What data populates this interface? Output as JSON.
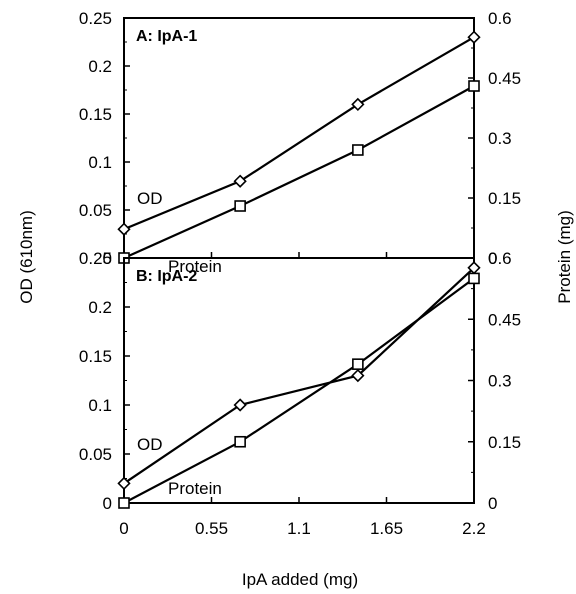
{
  "figure": {
    "ylabel_left": "OD (610nm)",
    "ylabel_right": "Protein (mg)",
    "xlabel": "IpA added (mg)"
  },
  "chart_data": [
    {
      "type": "line",
      "title": "A: IpA-1",
      "x": [
        0,
        0.73,
        1.47,
        2.2
      ],
      "xlim": [
        0,
        2.2
      ],
      "xticks": [
        "0",
        "0.55",
        "1.1",
        "1.65",
        "2.2"
      ],
      "ylim_left": [
        0,
        0.25
      ],
      "yticks_left": [
        "0",
        "0.05",
        "0.1",
        "0.15",
        "0.2",
        "0.25"
      ],
      "ylim_right": [
        0,
        0.6
      ],
      "yticks_right": [
        "0",
        "0.15",
        "0.3",
        "0.45",
        "0.6"
      ],
      "series": [
        {
          "name": "OD",
          "axis": "left",
          "marker": "diamond",
          "values": [
            0.03,
            0.08,
            0.16,
            0.23
          ]
        },
        {
          "name": "Protein",
          "axis": "right",
          "marker": "square",
          "values": [
            0.0,
            0.13,
            0.27,
            0.43
          ]
        }
      ]
    },
    {
      "type": "line",
      "title": "B: IpA-2",
      "x": [
        0,
        0.73,
        1.47,
        2.2
      ],
      "xlim": [
        0,
        2.2
      ],
      "xticks": [
        "0",
        "0.55",
        "1.1",
        "1.65",
        "2.2"
      ],
      "ylim_left": [
        0,
        0.25
      ],
      "yticks_left": [
        "0",
        "0.05",
        "0.1",
        "0.15",
        "0.2",
        "0.25"
      ],
      "ylim_right": [
        0,
        0.6
      ],
      "yticks_right": [
        "0",
        "0.15",
        "0.3",
        "0.45",
        "0.6"
      ],
      "series": [
        {
          "name": "OD",
          "axis": "left",
          "marker": "diamond",
          "values": [
            0.02,
            0.1,
            0.13,
            0.24
          ]
        },
        {
          "name": "Protein",
          "axis": "right",
          "marker": "square",
          "values": [
            0.0,
            0.15,
            0.34,
            0.55
          ]
        }
      ]
    }
  ]
}
